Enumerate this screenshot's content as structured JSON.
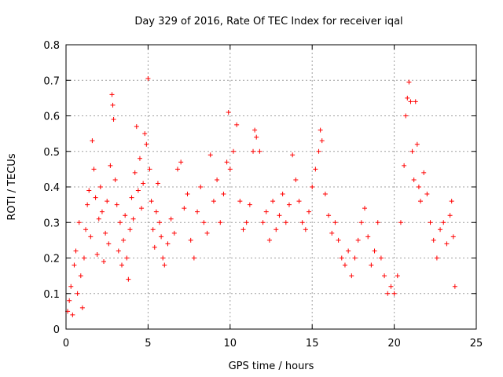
{
  "chart_data": {
    "type": "scatter",
    "title": "Day 329 of 2016, Rate Of TEC Index for receiver iqal",
    "xlabel": "GPS time / hours",
    "ylabel": "ROTI / TECUs",
    "xlim": [
      0,
      25
    ],
    "ylim": [
      0,
      0.8
    ],
    "x_ticks": [
      0,
      5,
      10,
      15,
      20,
      25
    ],
    "x_tick_labels": [
      "0",
      "5",
      "10",
      "15",
      "20",
      "25"
    ],
    "y_ticks": [
      0,
      0.1,
      0.2,
      0.3,
      0.4,
      0.5,
      0.6,
      0.7,
      0.8
    ],
    "y_tick_labels": [
      "0",
      "0.1",
      "0.2",
      "0.3",
      "0.4",
      "0.5",
      "0.6",
      "0.7",
      "0.8"
    ],
    "grid": true,
    "marker": "+",
    "color": "#ff0000",
    "series": [
      {
        "name": "ROTI",
        "points": [
          [
            0.1,
            0.05
          ],
          [
            0.2,
            0.08
          ],
          [
            0.3,
            0.12
          ],
          [
            0.4,
            0.04
          ],
          [
            0.5,
            0.18
          ],
          [
            0.6,
            0.22
          ],
          [
            0.7,
            0.1
          ],
          [
            0.8,
            0.3
          ],
          [
            0.9,
            0.15
          ],
          [
            1.0,
            0.06
          ],
          [
            1.1,
            0.2
          ],
          [
            1.2,
            0.28
          ],
          [
            1.3,
            0.35
          ],
          [
            1.4,
            0.39
          ],
          [
            1.5,
            0.26
          ],
          [
            1.6,
            0.53
          ],
          [
            1.7,
            0.45
          ],
          [
            1.8,
            0.37
          ],
          [
            1.9,
            0.21
          ],
          [
            2.0,
            0.31
          ],
          [
            2.1,
            0.4
          ],
          [
            2.2,
            0.33
          ],
          [
            2.3,
            0.19
          ],
          [
            2.4,
            0.27
          ],
          [
            2.5,
            0.36
          ],
          [
            2.6,
            0.24
          ],
          [
            2.7,
            0.46
          ],
          [
            2.8,
            0.66
          ],
          [
            2.85,
            0.63
          ],
          [
            2.9,
            0.59
          ],
          [
            3.0,
            0.42
          ],
          [
            3.1,
            0.35
          ],
          [
            3.2,
            0.22
          ],
          [
            3.3,
            0.3
          ],
          [
            3.4,
            0.18
          ],
          [
            3.5,
            0.25
          ],
          [
            3.6,
            0.32
          ],
          [
            3.7,
            0.2
          ],
          [
            3.8,
            0.14
          ],
          [
            3.9,
            0.28
          ],
          [
            4.0,
            0.37
          ],
          [
            4.1,
            0.31
          ],
          [
            4.2,
            0.44
          ],
          [
            4.3,
            0.57
          ],
          [
            4.4,
            0.39
          ],
          [
            4.5,
            0.48
          ],
          [
            4.6,
            0.34
          ],
          [
            4.7,
            0.41
          ],
          [
            4.8,
            0.55
          ],
          [
            4.9,
            0.52
          ],
          [
            5.0,
            0.705
          ],
          [
            5.1,
            0.45
          ],
          [
            5.2,
            0.36
          ],
          [
            5.3,
            0.28
          ],
          [
            5.4,
            0.23
          ],
          [
            5.5,
            0.33
          ],
          [
            5.6,
            0.41
          ],
          [
            5.7,
            0.3
          ],
          [
            5.8,
            0.26
          ],
          [
            5.9,
            0.2
          ],
          [
            6.0,
            0.18
          ],
          [
            6.2,
            0.24
          ],
          [
            6.4,
            0.31
          ],
          [
            6.6,
            0.27
          ],
          [
            6.8,
            0.45
          ],
          [
            7.0,
            0.47
          ],
          [
            7.2,
            0.34
          ],
          [
            7.4,
            0.38
          ],
          [
            7.6,
            0.25
          ],
          [
            7.8,
            0.2
          ],
          [
            8.0,
            0.33
          ],
          [
            8.2,
            0.4
          ],
          [
            8.4,
            0.3
          ],
          [
            8.6,
            0.27
          ],
          [
            8.8,
            0.49
          ],
          [
            9.0,
            0.36
          ],
          [
            9.2,
            0.42
          ],
          [
            9.4,
            0.3
          ],
          [
            9.6,
            0.38
          ],
          [
            9.8,
            0.47
          ],
          [
            9.9,
            0.61
          ],
          [
            10.0,
            0.45
          ],
          [
            10.2,
            0.5
          ],
          [
            10.4,
            0.575
          ],
          [
            10.6,
            0.36
          ],
          [
            10.8,
            0.28
          ],
          [
            11.0,
            0.3
          ],
          [
            11.2,
            0.35
          ],
          [
            11.4,
            0.5
          ],
          [
            11.5,
            0.56
          ],
          [
            11.6,
            0.54
          ],
          [
            11.8,
            0.5
          ],
          [
            12.0,
            0.3
          ],
          [
            12.2,
            0.33
          ],
          [
            12.4,
            0.25
          ],
          [
            12.6,
            0.36
          ],
          [
            12.8,
            0.28
          ],
          [
            13.0,
            0.32
          ],
          [
            13.2,
            0.38
          ],
          [
            13.4,
            0.3
          ],
          [
            13.6,
            0.35
          ],
          [
            13.8,
            0.49
          ],
          [
            14.0,
            0.42
          ],
          [
            14.2,
            0.36
          ],
          [
            14.4,
            0.3
          ],
          [
            14.6,
            0.28
          ],
          [
            14.8,
            0.33
          ],
          [
            15.0,
            0.4
          ],
          [
            15.2,
            0.45
          ],
          [
            15.4,
            0.5
          ],
          [
            15.5,
            0.56
          ],
          [
            15.6,
            0.53
          ],
          [
            15.8,
            0.38
          ],
          [
            16.0,
            0.32
          ],
          [
            16.2,
            0.27
          ],
          [
            16.4,
            0.3
          ],
          [
            16.6,
            0.25
          ],
          [
            16.8,
            0.2
          ],
          [
            17.0,
            0.18
          ],
          [
            17.2,
            0.22
          ],
          [
            17.4,
            0.15
          ],
          [
            17.6,
            0.2
          ],
          [
            17.8,
            0.25
          ],
          [
            18.0,
            0.3
          ],
          [
            18.2,
            0.34
          ],
          [
            18.4,
            0.26
          ],
          [
            18.6,
            0.18
          ],
          [
            18.8,
            0.22
          ],
          [
            19.0,
            0.3
          ],
          [
            19.2,
            0.2
          ],
          [
            19.4,
            0.15
          ],
          [
            19.6,
            0.1
          ],
          [
            19.8,
            0.12
          ],
          [
            20.0,
            0.1
          ],
          [
            20.2,
            0.15
          ],
          [
            20.4,
            0.3
          ],
          [
            20.6,
            0.46
          ],
          [
            20.7,
            0.6
          ],
          [
            20.8,
            0.65
          ],
          [
            20.9,
            0.695
          ],
          [
            21.0,
            0.64
          ],
          [
            21.1,
            0.5
          ],
          [
            21.2,
            0.42
          ],
          [
            21.3,
            0.64
          ],
          [
            21.4,
            0.52
          ],
          [
            21.5,
            0.4
          ],
          [
            21.6,
            0.36
          ],
          [
            21.8,
            0.44
          ],
          [
            22.0,
            0.38
          ],
          [
            22.2,
            0.3
          ],
          [
            22.4,
            0.25
          ],
          [
            22.6,
            0.2
          ],
          [
            22.8,
            0.28
          ],
          [
            23.0,
            0.3
          ],
          [
            23.2,
            0.24
          ],
          [
            23.4,
            0.32
          ],
          [
            23.5,
            0.36
          ],
          [
            23.6,
            0.26
          ],
          [
            23.7,
            0.12
          ]
        ]
      }
    ]
  }
}
